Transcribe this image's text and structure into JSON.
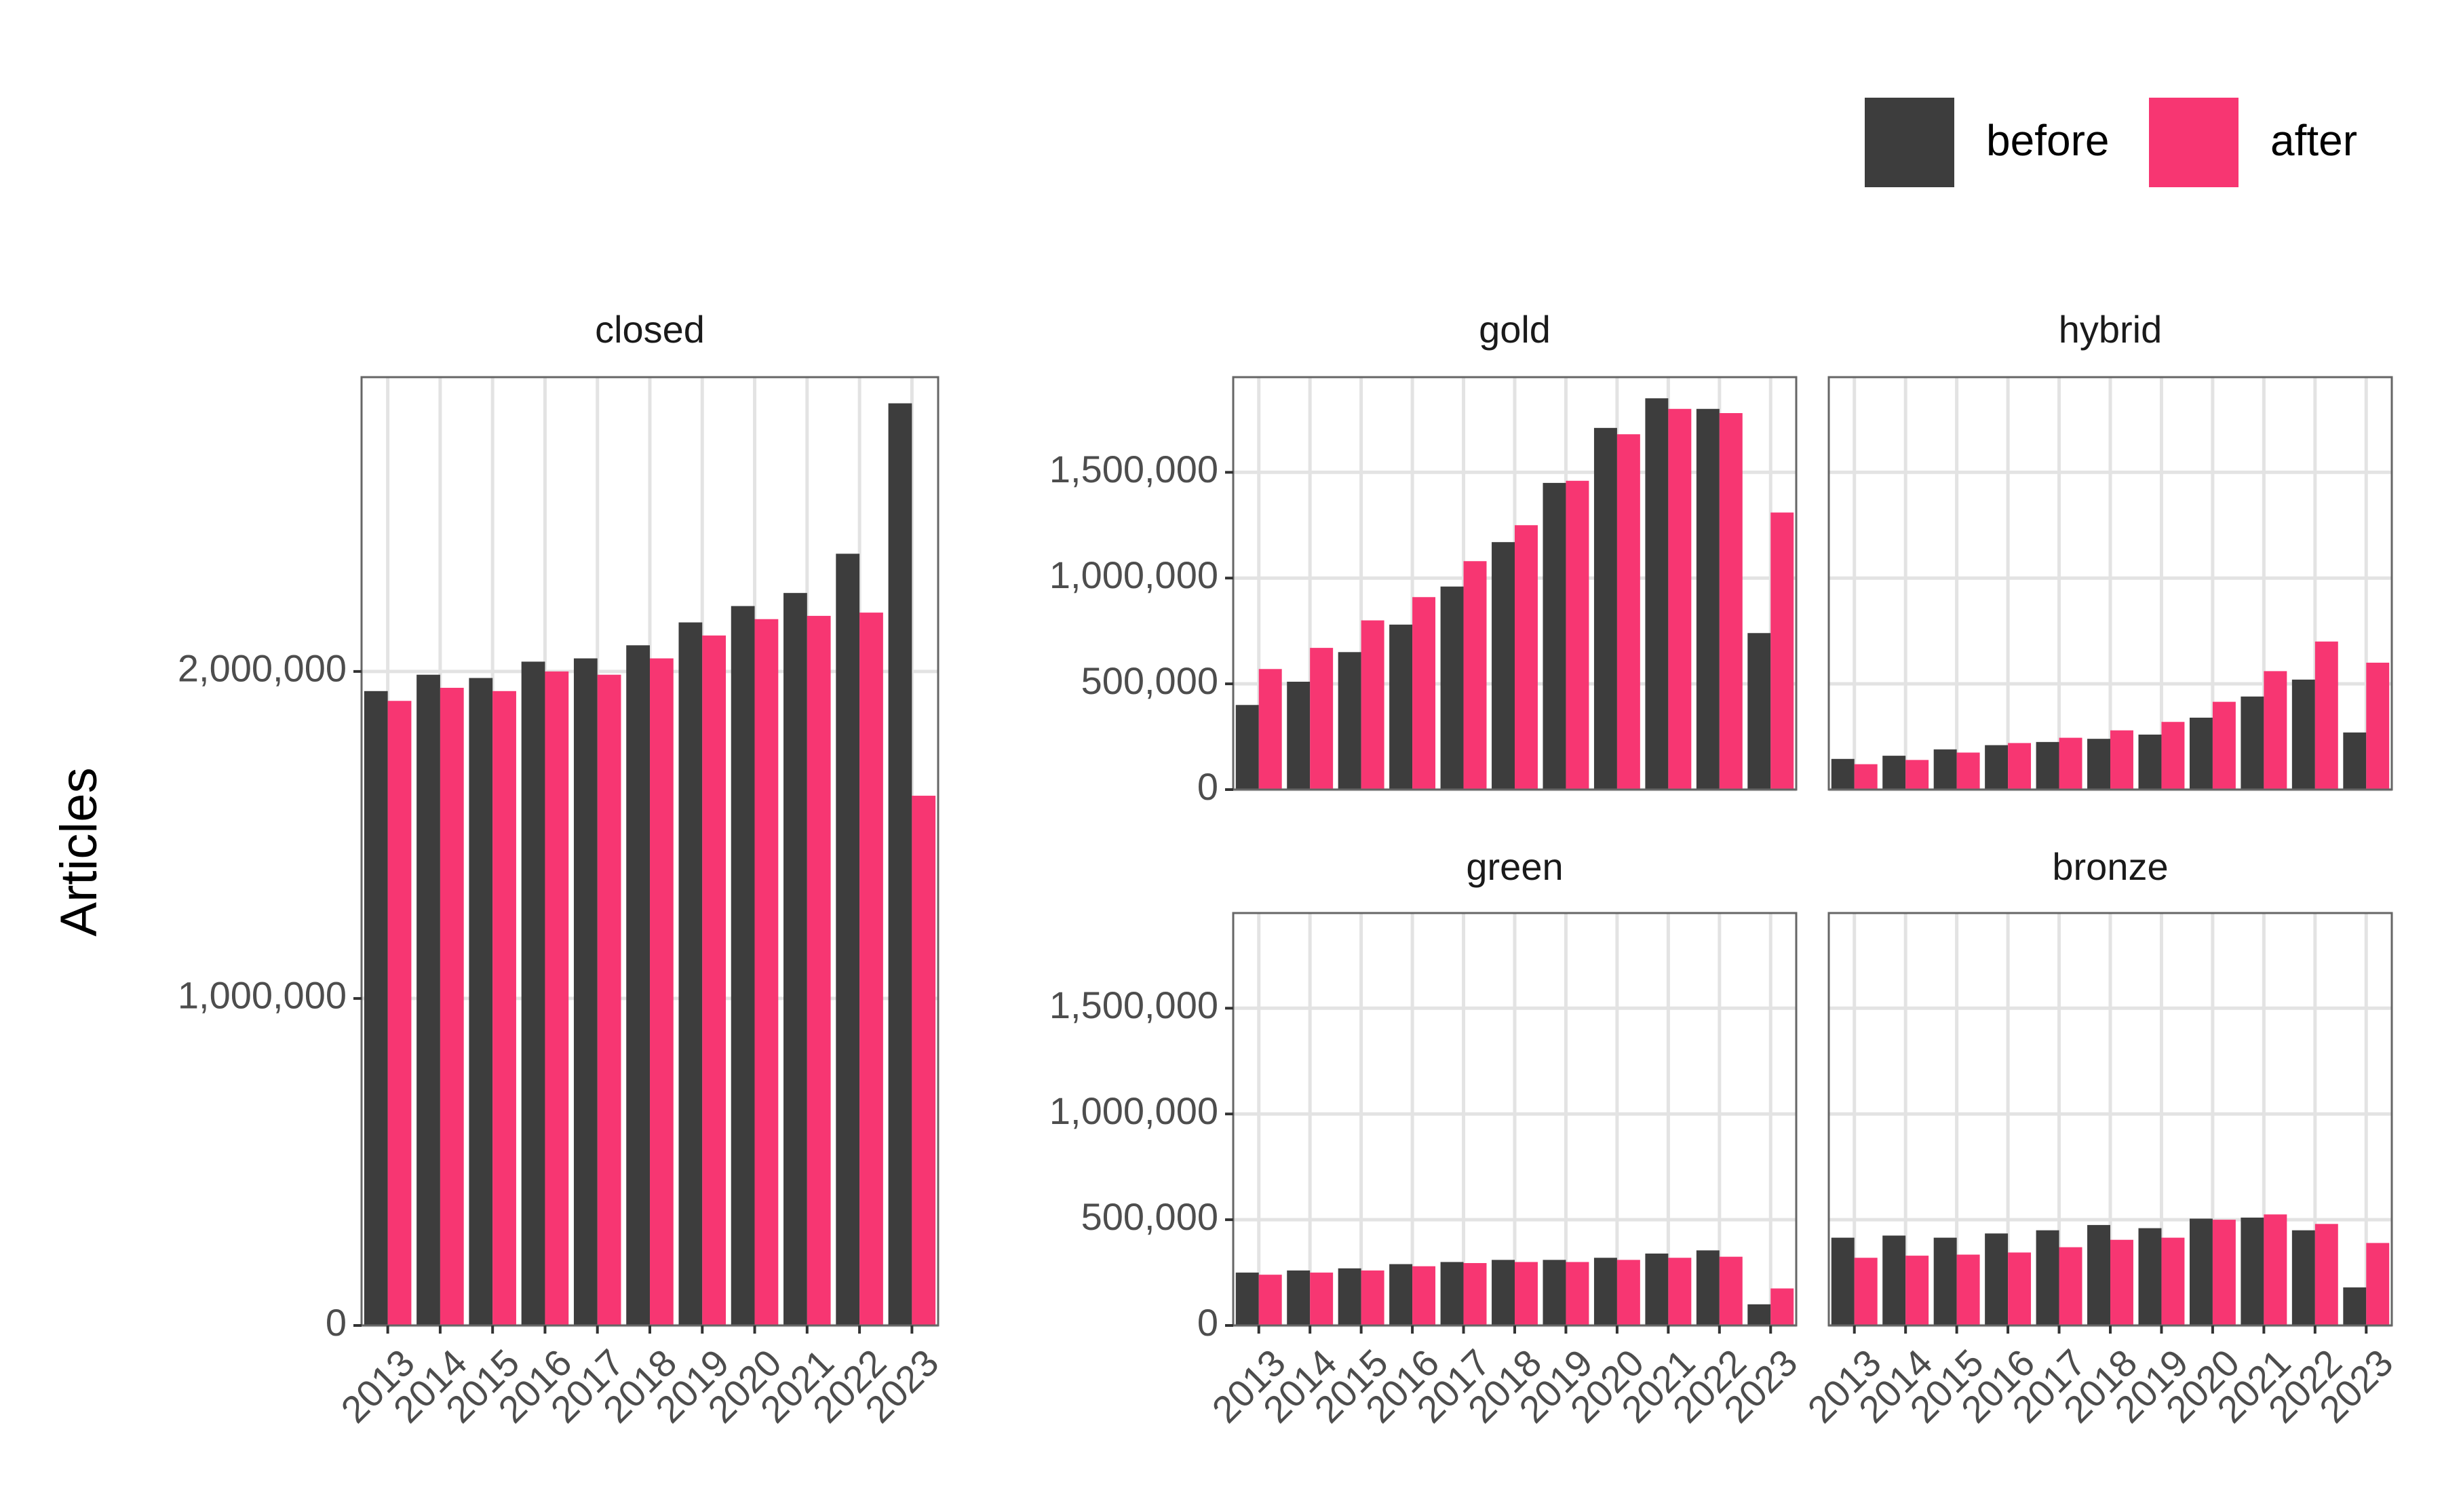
{
  "chart_data": {
    "type": "bar",
    "ylabel": "Articles",
    "legend": {
      "position": "top-right",
      "items": [
        {
          "name": "before",
          "color": "#3d3d3d"
        },
        {
          "name": "after",
          "color": "#f73672"
        }
      ]
    },
    "categories": [
      "2013",
      "2014",
      "2015",
      "2016",
      "2017",
      "2018",
      "2019",
      "2020",
      "2021",
      "2022",
      "2023"
    ],
    "grid": true,
    "panels": [
      {
        "title": "closed",
        "ylim": [
          0,
          2900000
        ],
        "yticks": [
          0,
          1000000,
          2000000
        ],
        "ytick_labels": [
          "0",
          "1,000,000",
          "2,000,000"
        ],
        "series": [
          {
            "name": "before",
            "values": [
              1940000,
              1990000,
              1980000,
              2030000,
              2040000,
              2080000,
              2150000,
              2200000,
              2240000,
              2360000,
              2820000
            ]
          },
          {
            "name": "after",
            "values": [
              1910000,
              1950000,
              1940000,
              2000000,
              1990000,
              2040000,
              2110000,
              2160000,
              2170000,
              2180000,
              1620000
            ]
          }
        ]
      },
      {
        "title": "gold",
        "ylim": [
          0,
          1950000
        ],
        "yticks": [
          0,
          500000,
          1000000,
          1500000
        ],
        "ytick_labels": [
          "0",
          "500,000",
          "1,000,000",
          "1,500,000"
        ],
        "series": [
          {
            "name": "before",
            "values": [
              400000,
              510000,
              650000,
              780000,
              960000,
              1170000,
              1450000,
              1710000,
              1850000,
              1800000,
              740000
            ]
          },
          {
            "name": "after",
            "values": [
              570000,
              670000,
              800000,
              910000,
              1080000,
              1250000,
              1460000,
              1680000,
              1800000,
              1780000,
              1310000
            ]
          }
        ]
      },
      {
        "title": "hybrid",
        "ylim": [
          0,
          1950000
        ],
        "yticks": [
          0,
          500000,
          1000000,
          1500000
        ],
        "ytick_labels": [
          "0",
          "500,000",
          "1,000,000",
          "1,500,000"
        ],
        "series": [
          {
            "name": "before",
            "values": [
              145000,
              160000,
              190000,
              210000,
              225000,
              240000,
              260000,
              340000,
              440000,
              520000,
              270000
            ]
          },
          {
            "name": "after",
            "values": [
              120000,
              140000,
              175000,
              220000,
              245000,
              280000,
              320000,
              415000,
              560000,
              700000,
              600000
            ]
          }
        ]
      },
      {
        "title": "green",
        "ylim": [
          0,
          1950000
        ],
        "yticks": [
          0,
          500000,
          1000000,
          1500000
        ],
        "ytick_labels": [
          "0",
          "500,000",
          "1,000,000",
          "1,500,000"
        ],
        "series": [
          {
            "name": "before",
            "values": [
              250000,
              260000,
              270000,
              290000,
              300000,
              310000,
              310000,
              320000,
              340000,
              355000,
              100000
            ]
          },
          {
            "name": "after",
            "values": [
              240000,
              250000,
              260000,
              280000,
              295000,
              300000,
              300000,
              310000,
              320000,
              325000,
              175000
            ]
          }
        ]
      },
      {
        "title": "bronze",
        "ylim": [
          0,
          1950000
        ],
        "yticks": [
          0,
          500000,
          1000000,
          1500000
        ],
        "ytick_labels": [
          "0",
          "500,000",
          "1,000,000",
          "1,500,000"
        ],
        "series": [
          {
            "name": "before",
            "values": [
              415000,
              425000,
              415000,
              435000,
              450000,
              475000,
              460000,
              505000,
              510000,
              450000,
              180000
            ]
          },
          {
            "name": "after",
            "values": [
              320000,
              330000,
              335000,
              345000,
              370000,
              405000,
              415000,
              500000,
              525000,
              480000,
              390000
            ]
          }
        ]
      }
    ]
  }
}
